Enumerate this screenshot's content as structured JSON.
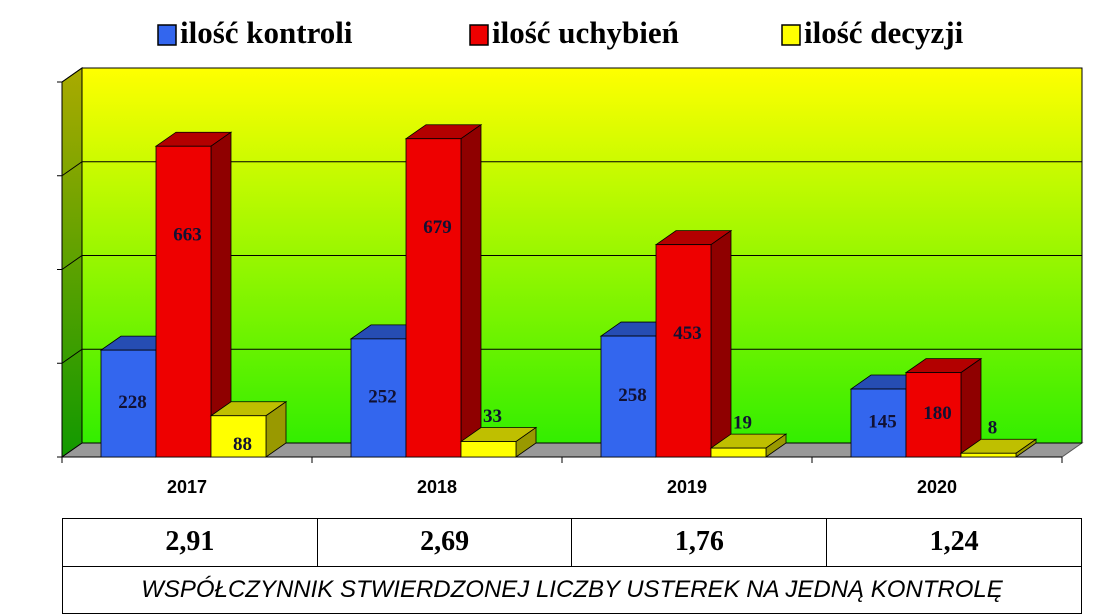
{
  "chart_data": {
    "type": "bar3d",
    "categories": [
      "2017",
      "2018",
      "2019",
      "2020"
    ],
    "series": [
      {
        "name": "ilość kontroli",
        "color": "#3366ee",
        "values": [
          228,
          252,
          258,
          145
        ]
      },
      {
        "name": "ilość uchybień",
        "color": "#ee0000",
        "values": [
          663,
          679,
          453,
          180
        ]
      },
      {
        "name": "ilość decyzji",
        "color": "#ffff00",
        "values": [
          88,
          33,
          19,
          8
        ]
      }
    ],
    "ylim": [
      0,
      800
    ],
    "yticks": [
      0,
      200,
      400,
      600,
      800
    ],
    "grid": true,
    "legend": "top"
  },
  "table": {
    "rows": [
      [
        "2,91",
        "2,69",
        "1,76",
        "1,24"
      ]
    ],
    "caption": "WSPÓŁCZYNNIK STWIERDZONEJ LICZBY USTEREK NA JEDNĄ KONTROLĘ"
  }
}
